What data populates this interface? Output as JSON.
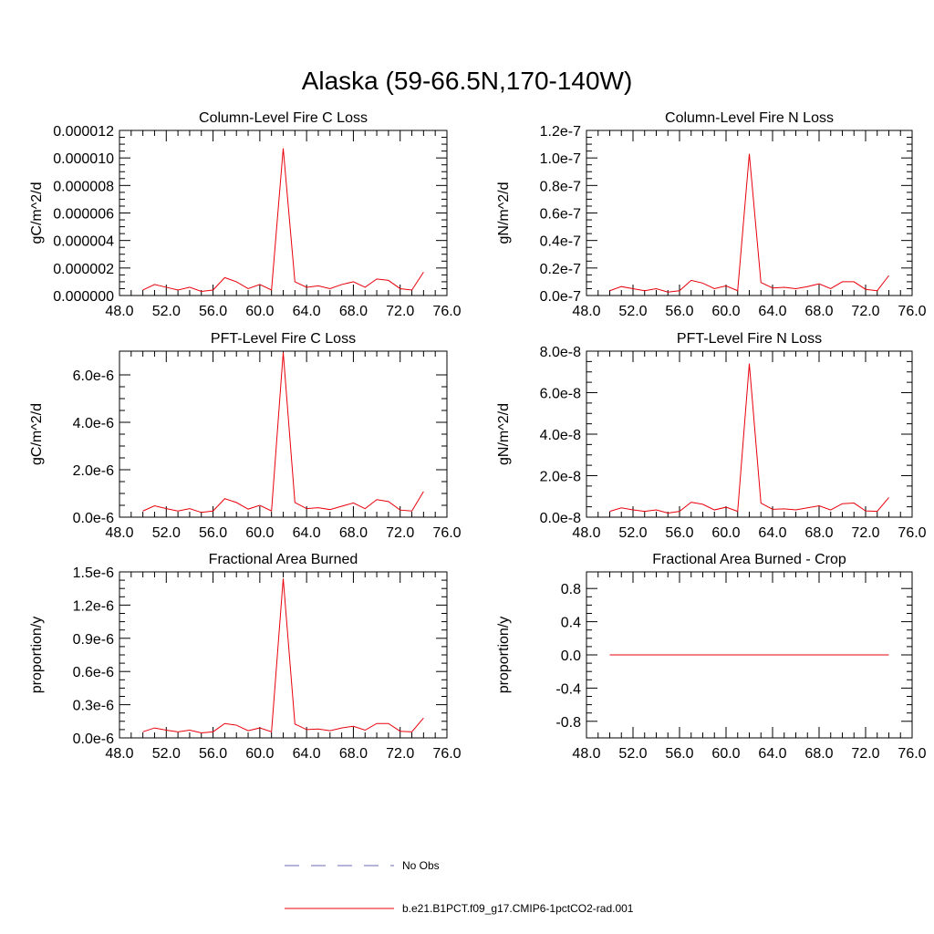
{
  "figure": {
    "title": "Alaska (59-66.5N,170-140W)"
  },
  "legend": {
    "entries": [
      {
        "label": "No Obs",
        "color": "#6a6ab0",
        "style": "dashed"
      },
      {
        "label": "b.e21.B1PCT.f09_g17.CMIP6-1pctCO2-rad.001",
        "color": "#e8000b",
        "style": "solid"
      }
    ]
  },
  "chart_data": [
    {
      "type": "line",
      "title": "Column-Level Fire C Loss",
      "xlabel": "",
      "ylabel": "gC/m^2/d",
      "xlim": [
        48,
        76
      ],
      "ylim": [
        0,
        1.2e-05
      ],
      "xticks": [
        48,
        52,
        56,
        60,
        64,
        68,
        72,
        76
      ],
      "xtick_labels": [
        "48.0",
        "52.0",
        "56.0",
        "60.0",
        "64.0",
        "68.0",
        "72.0",
        "76.0"
      ],
      "yticks": [
        0,
        2e-06,
        4e-06,
        6e-06,
        8e-06,
        1e-05,
        1.2e-05
      ],
      "ytick_labels": [
        "0.000000",
        "0.000002",
        "0.000004",
        "0.000006",
        "0.000008",
        "0.000010",
        "0.000012"
      ],
      "series": [
        {
          "name": "b.e21.B1PCT.f09_g17.CMIP6-1pctCO2-rad.001",
          "color": "#e8000b",
          "x": [
            50,
            51,
            52,
            53,
            54,
            55,
            56,
            57,
            58,
            59,
            60,
            61,
            62,
            63,
            64,
            65,
            66,
            67,
            68,
            69,
            70,
            71,
            72,
            73,
            74
          ],
          "y": [
            4e-07,
            8e-07,
            6e-07,
            4e-07,
            6e-07,
            3e-07,
            4e-07,
            1.3e-06,
            1e-06,
            5e-07,
            8e-07,
            4e-07,
            1.07e-05,
            1e-06,
            6e-07,
            7e-07,
            5e-07,
            8e-07,
            1e-06,
            6e-07,
            1.2e-06,
            1.1e-06,
            5e-07,
            4e-07,
            1.7e-06
          ]
        }
      ]
    },
    {
      "type": "line",
      "title": "Column-Level Fire N Loss",
      "xlabel": "",
      "ylabel": "gN/m^2/d",
      "xlim": [
        48,
        76
      ],
      "ylim": [
        0,
        1.2e-07
      ],
      "xticks": [
        48,
        52,
        56,
        60,
        64,
        68,
        72,
        76
      ],
      "xtick_labels": [
        "48.0",
        "52.0",
        "56.0",
        "60.0",
        "64.0",
        "68.0",
        "72.0",
        "76.0"
      ],
      "yticks": [
        0,
        2e-08,
        4e-08,
        6e-08,
        8e-08,
        1e-07,
        1.2e-07
      ],
      "ytick_labels": [
        "0.0e-7",
        "0.2e-7",
        "0.4e-7",
        "0.6e-7",
        "0.8e-7",
        "1.0e-7",
        "1.2e-7"
      ],
      "series": [
        {
          "name": "b.e21.B1PCT.f09_g17.CMIP6-1pctCO2-rad.001",
          "color": "#e8000b",
          "x": [
            50,
            51,
            52,
            53,
            54,
            55,
            56,
            57,
            58,
            59,
            60,
            61,
            62,
            63,
            64,
            65,
            66,
            67,
            68,
            69,
            70,
            71,
            72,
            73,
            74
          ],
          "y": [
            3.5e-09,
            6.5e-09,
            5e-09,
            3.5e-09,
            5e-09,
            2.5e-09,
            3.5e-09,
            1.1e-08,
            9e-09,
            5e-09,
            7e-09,
            3.5e-09,
            1.03e-07,
            9.5e-09,
            5.5e-09,
            6e-09,
            5e-09,
            6.5e-09,
            8.5e-09,
            5e-09,
            1e-08,
            1e-08,
            4.5e-09,
            3.5e-09,
            1.45e-08
          ]
        }
      ]
    },
    {
      "type": "line",
      "title": "PFT-Level Fire C Loss",
      "xlabel": "",
      "ylabel": "gC/m^2/d",
      "xlim": [
        48,
        76
      ],
      "ylim": [
        0,
        7e-06
      ],
      "xticks": [
        48,
        52,
        56,
        60,
        64,
        68,
        72,
        76
      ],
      "xtick_labels": [
        "48.0",
        "52.0",
        "56.0",
        "60.0",
        "64.0",
        "68.0",
        "72.0",
        "76.0"
      ],
      "yticks": [
        0,
        2e-06,
        4e-06,
        6e-06
      ],
      "ytick_labels": [
        "0.0e-6",
        "2.0e-6",
        "4.0e-6",
        "6.0e-6"
      ],
      "series": [
        {
          "name": "b.e21.B1PCT.f09_g17.CMIP6-1pctCO2-rad.001",
          "color": "#e8000b",
          "x": [
            50,
            51,
            52,
            53,
            54,
            55,
            56,
            57,
            58,
            59,
            60,
            61,
            62,
            63,
            64,
            65,
            66,
            67,
            68,
            69,
            70,
            71,
            72,
            73,
            74
          ],
          "y": [
            2.6e-07,
            4.8e-07,
            3.6e-07,
            2.6e-07,
            3.6e-07,
            2e-07,
            2.6e-07,
            7.8e-07,
            6.2e-07,
            3.4e-07,
            5e-07,
            2.6e-07,
            6.95e-06,
            6.2e-07,
            3.6e-07,
            4e-07,
            3.2e-07,
            4.6e-07,
            6e-07,
            3.6e-07,
            7.4e-07,
            6.6e-07,
            3e-07,
            2.6e-07,
            1.08e-06
          ]
        }
      ]
    },
    {
      "type": "line",
      "title": "PFT-Level Fire N Loss",
      "xlabel": "",
      "ylabel": "gN/m^2/d",
      "xlim": [
        48,
        76
      ],
      "ylim": [
        0,
        8e-08
      ],
      "xticks": [
        48,
        52,
        56,
        60,
        64,
        68,
        72,
        76
      ],
      "xtick_labels": [
        "48.0",
        "52.0",
        "56.0",
        "60.0",
        "64.0",
        "68.0",
        "72.0",
        "76.0"
      ],
      "yticks": [
        0,
        2e-08,
        4e-08,
        6e-08,
        8e-08
      ],
      "ytick_labels": [
        "0.0e-8",
        "2.0e-8",
        "4.0e-8",
        "6.0e-8",
        "8.0e-8"
      ],
      "series": [
        {
          "name": "b.e21.B1PCT.f09_g17.CMIP6-1pctCO2-rad.001",
          "color": "#e8000b",
          "x": [
            50,
            51,
            52,
            53,
            54,
            55,
            56,
            57,
            58,
            59,
            60,
            61,
            62,
            63,
            64,
            65,
            66,
            67,
            68,
            69,
            70,
            71,
            72,
            73,
            74
          ],
          "y": [
            2.8e-09,
            4.5e-09,
            3.5e-09,
            2.8e-09,
            3.5e-09,
            2e-09,
            2.8e-09,
            7.2e-09,
            6.2e-09,
            3.5e-09,
            4.8e-09,
            2.8e-09,
            7.4e-08,
            6.8e-09,
            3.8e-09,
            4e-09,
            3.5e-09,
            4.5e-09,
            5.5e-09,
            3.5e-09,
            6.5e-09,
            6.8e-09,
            3e-09,
            2.8e-09,
            9.5e-09
          ]
        }
      ]
    },
    {
      "type": "line",
      "title": "Fractional Area Burned",
      "xlabel": "",
      "ylabel": "proportion/y",
      "xlim": [
        48,
        76
      ],
      "ylim": [
        0,
        1.5e-06
      ],
      "xticks": [
        48,
        52,
        56,
        60,
        64,
        68,
        72,
        76
      ],
      "xtick_labels": [
        "48.0",
        "52.0",
        "56.0",
        "60.0",
        "64.0",
        "68.0",
        "72.0",
        "76.0"
      ],
      "yticks": [
        0,
        3e-07,
        6e-07,
        9e-07,
        1.2e-06,
        1.5e-06
      ],
      "ytick_labels": [
        "0.0e-6",
        "0.3e-6",
        "0.6e-6",
        "0.9e-6",
        "1.2e-6",
        "1.5e-6"
      ],
      "series": [
        {
          "name": "b.e21.B1PCT.f09_g17.CMIP6-1pctCO2-rad.001",
          "color": "#e8000b",
          "x": [
            50,
            51,
            52,
            53,
            54,
            55,
            56,
            57,
            58,
            59,
            60,
            61,
            62,
            63,
            64,
            65,
            66,
            67,
            68,
            69,
            70,
            71,
            72,
            73,
            74
          ],
          "y": [
            5.5e-08,
            9e-08,
            7e-08,
            5.5e-08,
            7e-08,
            4.5e-08,
            5.5e-08,
            1.3e-07,
            1.15e-07,
            6.5e-08,
            9e-08,
            5.5e-08,
            1.44e-06,
            1.25e-07,
            7.5e-08,
            8e-08,
            6.5e-08,
            9e-08,
            1.05e-07,
            7e-08,
            1.3e-07,
            1.3e-07,
            6e-08,
            5.5e-08,
            1.8e-07
          ]
        }
      ]
    },
    {
      "type": "line",
      "title": "Fractional Area Burned - Crop",
      "xlabel": "",
      "ylabel": "proportion/y",
      "xlim": [
        48,
        76
      ],
      "ylim": [
        -1,
        1
      ],
      "xticks": [
        48,
        52,
        56,
        60,
        64,
        68,
        72,
        76
      ],
      "xtick_labels": [
        "48.0",
        "52.0",
        "56.0",
        "60.0",
        "64.0",
        "68.0",
        "72.0",
        "76.0"
      ],
      "yticks": [
        -0.8,
        -0.4,
        0,
        0.4,
        0.8
      ],
      "ytick_labels": [
        "-0.8",
        "-0.4",
        "0.0",
        "0.4",
        "0.8"
      ],
      "series": [
        {
          "name": "b.e21.B1PCT.f09_g17.CMIP6-1pctCO2-rad.001",
          "color": "#e8000b",
          "x": [
            50,
            51,
            52,
            53,
            54,
            55,
            56,
            57,
            58,
            59,
            60,
            61,
            62,
            63,
            64,
            65,
            66,
            67,
            68,
            69,
            70,
            71,
            72,
            73,
            74
          ],
          "y": [
            0,
            0,
            0,
            0,
            0,
            0,
            0,
            0,
            0,
            0,
            0,
            0,
            0,
            0,
            0,
            0,
            0,
            0,
            0,
            0,
            0,
            0,
            0,
            0,
            0
          ]
        }
      ]
    }
  ]
}
